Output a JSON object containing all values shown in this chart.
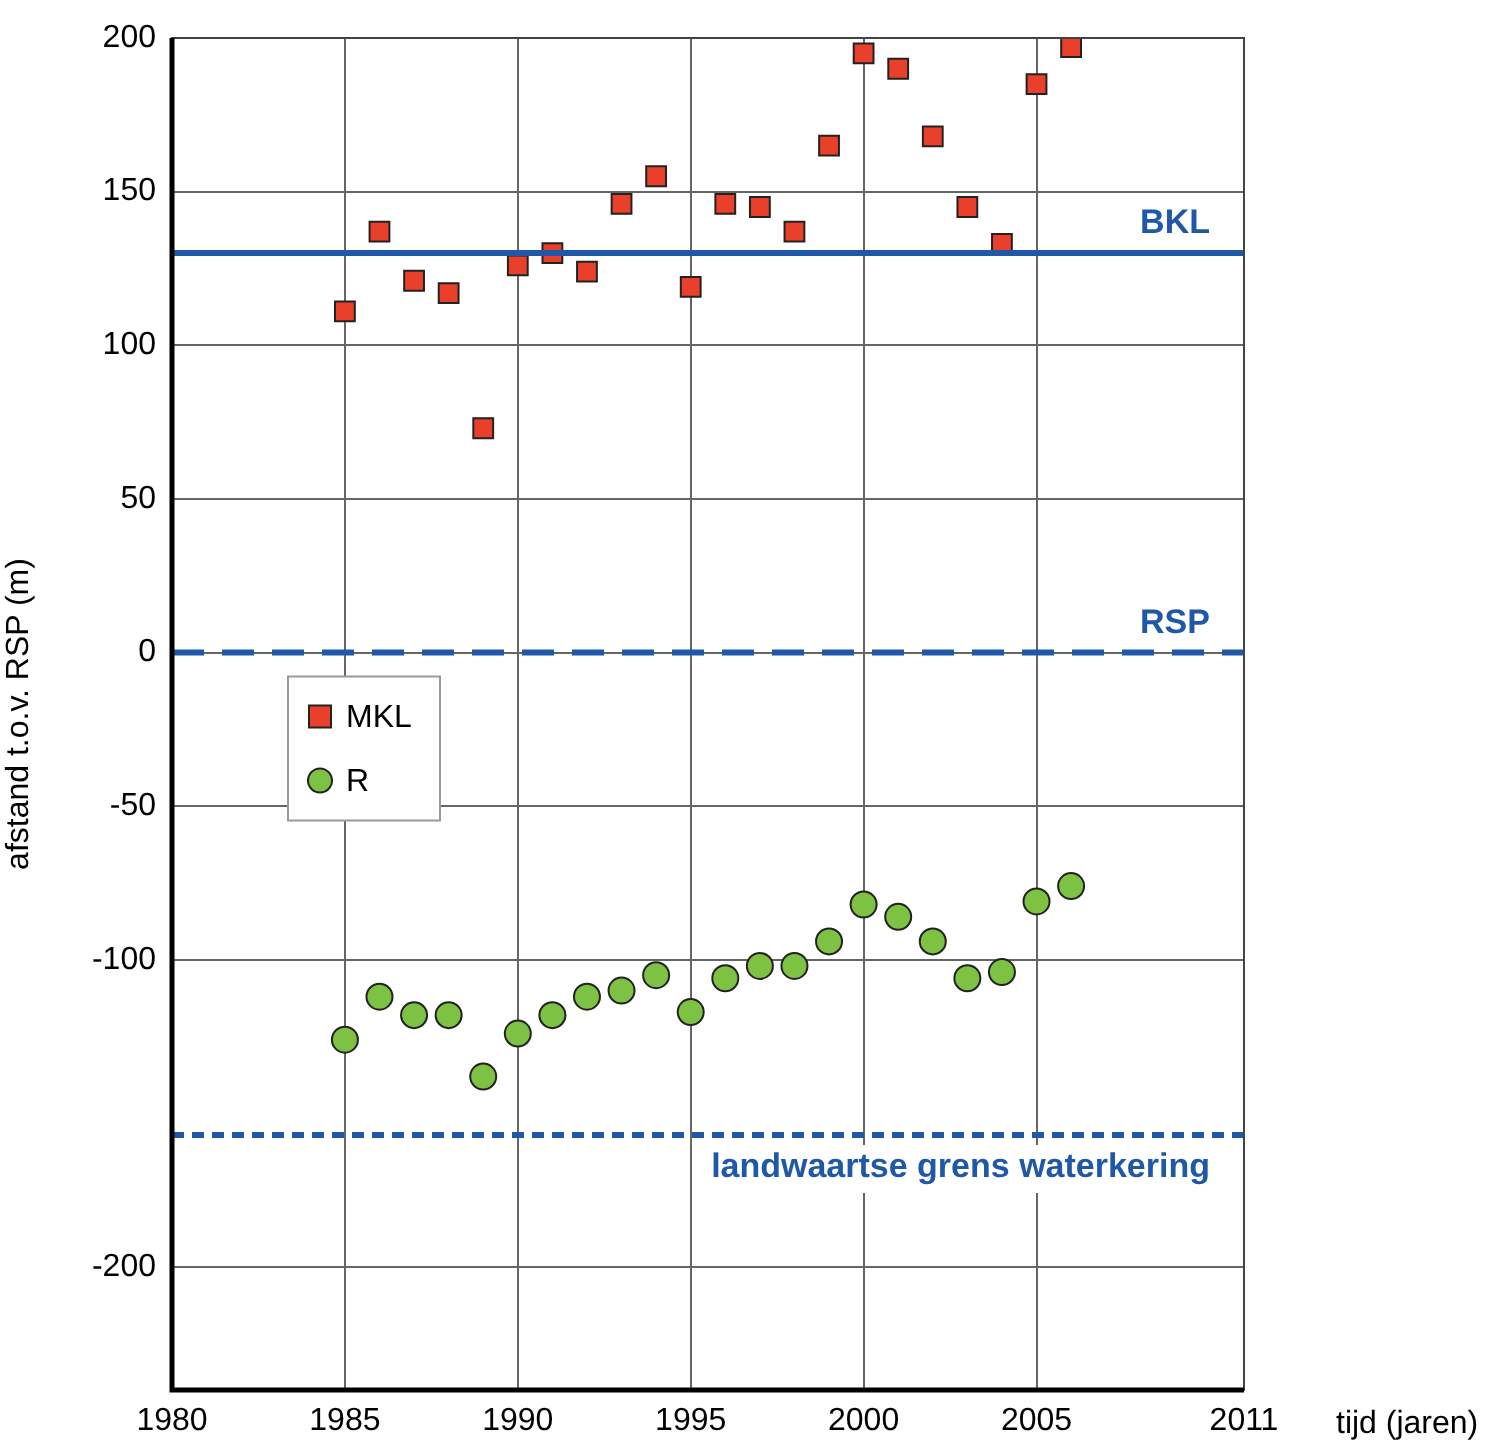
{
  "chart_data": {
    "type": "scatter",
    "xlabel": "tijd (jaren)",
    "ylabel": "afstand t.o.v. RSP (m)",
    "x": [
      1985,
      1986,
      1987,
      1988,
      1989,
      1990,
      1991,
      1992,
      1993,
      1994,
      1995,
      1996,
      1997,
      1998,
      1999,
      2000,
      2001,
      2002,
      2003,
      2004,
      2005,
      2006
    ],
    "series": [
      {
        "name": "MKL",
        "color": "#e8402a",
        "marker": "square",
        "values": [
          111,
          137,
          121,
          117,
          73,
          126,
          130,
          124,
          146,
          155,
          119,
          146,
          145,
          137,
          165,
          195,
          190,
          168,
          145,
          133,
          185,
          197
        ]
      },
      {
        "name": "R",
        "color": "#7dc242",
        "marker": "circle",
        "values": [
          -126,
          -112,
          -118,
          -118,
          -138,
          -124,
          -118,
          -112,
          -110,
          -105,
          -117,
          -106,
          -102,
          -102,
          -94,
          -82,
          -86,
          -94,
          -106,
          -104,
          -81,
          -76
        ]
      }
    ],
    "xlim": [
      1980,
      2011
    ],
    "xticks": [
      1980,
      1985,
      1990,
      1995,
      2000,
      2005,
      2011
    ],
    "ylim": [
      -240,
      200
    ],
    "yticks": [
      200,
      150,
      100,
      50,
      0,
      -50,
      -100,
      -200
    ],
    "grid": true,
    "legend": "left",
    "ref_lines": [
      {
        "axis": "y",
        "value": 130,
        "label": "BKL",
        "color": "#1f58a6",
        "line_style": "solid"
      },
      {
        "axis": "y",
        "value": 0,
        "label": "RSP",
        "color": "#1f58a6",
        "line_style": "dashed"
      },
      {
        "axis": "y",
        "value": -157,
        "label": "landwaartse grens waterkering",
        "color": "#1f58a6",
        "line_style": "dotted"
      }
    ]
  }
}
